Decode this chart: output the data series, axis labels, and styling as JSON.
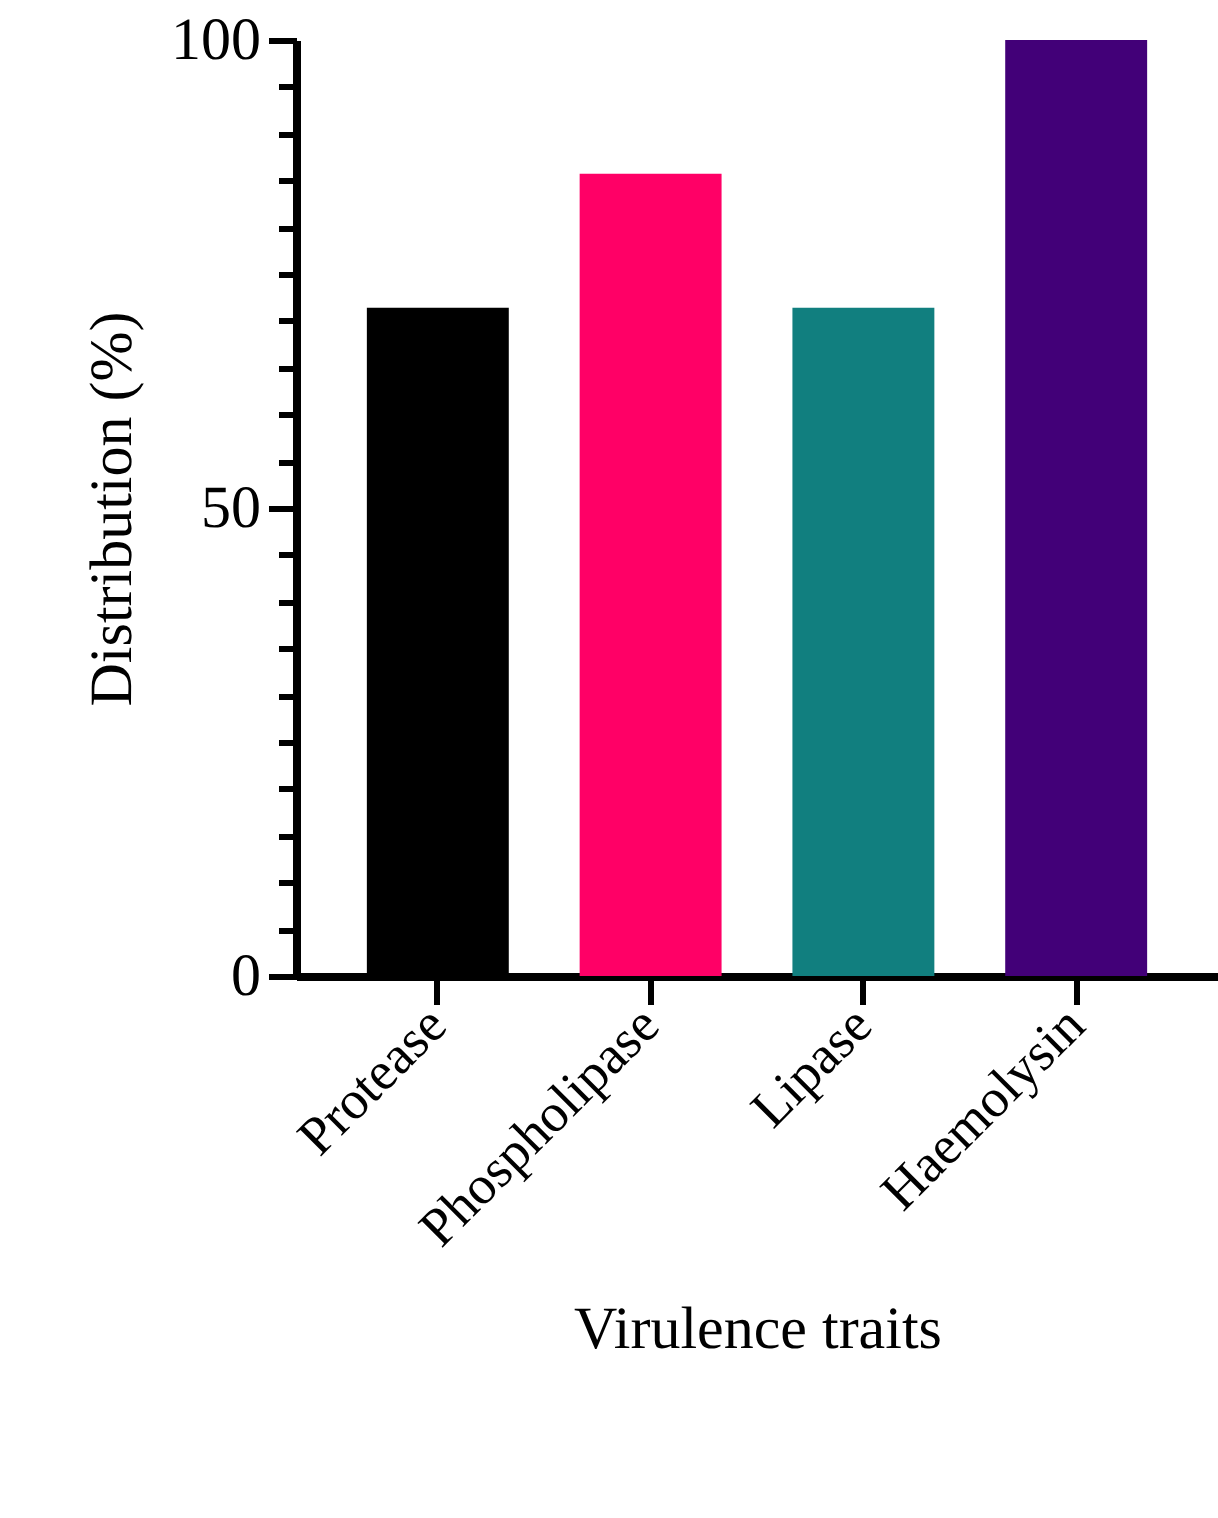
{
  "chart_data": {
    "type": "bar",
    "xlabel": "Virulence traits",
    "ylabel": "Distribution (%)",
    "categories": [
      "Protease",
      "Phospholipase",
      "Lipase",
      "Haemolysin"
    ],
    "values": [
      71.4,
      85.7,
      71.4,
      100
    ],
    "colors": [
      "#000000",
      "#ff0066",
      "#117f7f",
      "#420078"
    ],
    "ylim": [
      0,
      100
    ],
    "yticks": [
      0,
      {
        "value": 5,
        "label": null
      },
      {
        "value": 10,
        "label": null
      },
      {
        "value": 15,
        "label": null
      },
      {
        "value": 20,
        "label": null
      },
      {
        "value": 25,
        "label": null
      },
      {
        "value": 30,
        "label": null
      },
      {
        "value": 35,
        "label": null
      },
      {
        "value": 40,
        "label": null
      },
      {
        "value": 45,
        "label": null
      },
      50,
      {
        "value": 55,
        "label": null
      },
      {
        "value": 60,
        "label": null
      },
      {
        "value": 65,
        "label": null
      },
      {
        "value": 70,
        "label": null
      },
      {
        "value": 75,
        "label": null
      },
      {
        "value": 80,
        "label": null
      },
      {
        "value": 85,
        "label": null
      },
      {
        "value": 90,
        "label": null
      },
      {
        "value": 95,
        "label": null
      },
      100
    ],
    "grid": false
  }
}
